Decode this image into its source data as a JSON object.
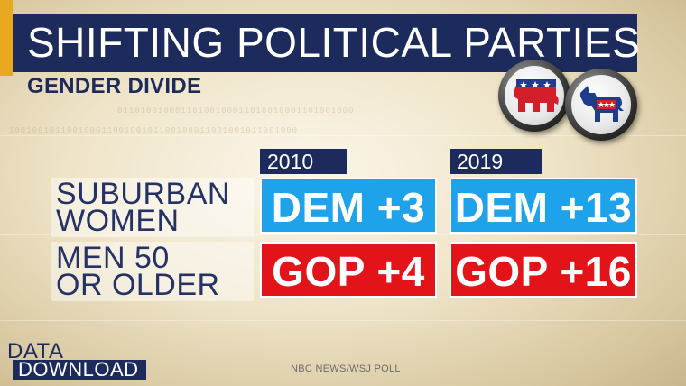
{
  "header": {
    "title": "SHIFTING POLITICAL PARTIES",
    "subtitle": "GENDER DIVIDE"
  },
  "logos": [
    {
      "icon": "republican-elephant-icon",
      "color": "#d21f2a"
    },
    {
      "icon": "democratic-donkey-icon",
      "color": "#1d3c8c"
    }
  ],
  "table": {
    "years": [
      "2010",
      "2019"
    ],
    "rows": [
      {
        "label_line1": "SUBURBAN",
        "label_line2": "WOMEN",
        "values": [
          "DEM +3",
          "DEM +13"
        ],
        "party": "dem"
      },
      {
        "label_line1": "MEN 50",
        "label_line2": "OR OLDER",
        "values": [
          "GOP +4",
          "GOP +16"
        ],
        "party": "gop"
      }
    ]
  },
  "colors": {
    "dem": "#1ea3ea",
    "gop": "#e3131a",
    "navy": "#1d2a5c",
    "gold": "#e8a921"
  },
  "brand": {
    "line1": "DATA_",
    "line2": "DOWNLOAD"
  },
  "source": "NBC NEWS/WSJ POLL"
}
